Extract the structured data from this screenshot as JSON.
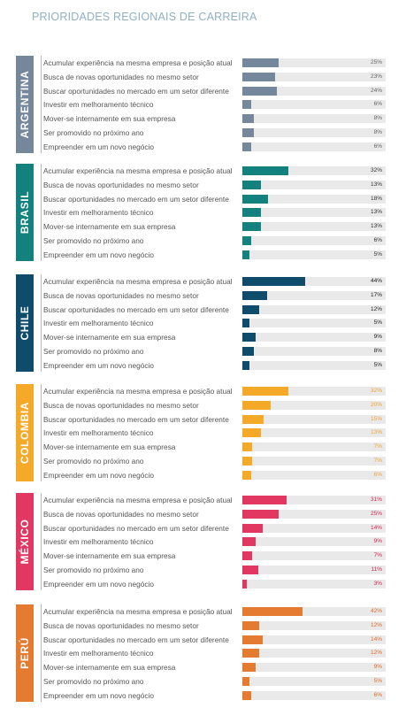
{
  "title": "PRIORIDADES REGIONAIS DE CARREIRA",
  "chart_data": [
    {
      "type": "bar",
      "title": "ARGENTINA",
      "color": "#75879b",
      "label_color": "#666666",
      "categories": [
        "Acumular experiência na mesma empresa e posição atual",
        "Busca de novas oportunidades no mesmo setor",
        "Buscar oportunidades no mercado em um setor diferente",
        "Investir em melhoramento técnico",
        "Mover-se internamente em sua empresa",
        "Ser promovido no próximo ano",
        "Empreender em um novo negócio"
      ],
      "values": [
        25,
        23,
        24,
        6,
        8,
        8,
        6
      ],
      "value_labels": [
        "25%",
        "23%",
        "24%",
        "6%",
        "8%",
        "8%",
        "6%"
      ]
    },
    {
      "type": "bar",
      "title": "BRASIL",
      "color": "#13827f",
      "label_color": "#333333",
      "categories": [
        "Acumular experiência na mesma empresa e posição atual",
        "Busca de novas oportunidades no mesmo setor",
        "Buscar oportunidades no mercado em um setor diferente",
        "Investir em melhoramento técnico",
        "Mover-se internamente em sua empresa",
        "Ser promovido no próximo ano",
        "Empreender em um novo negócio"
      ],
      "values": [
        32,
        13,
        18,
        13,
        13,
        6,
        5
      ],
      "value_labels": [
        "32%",
        "13%",
        "18%",
        "13%",
        "13%",
        "6%",
        "5%"
      ]
    },
    {
      "type": "bar",
      "title": "CHILE",
      "color": "#0f4b6b",
      "label_color": "#222222",
      "categories": [
        "Acumular experiência na mesma empresa e posição atual",
        "Busca de novas oportunidades no mesmo setor",
        "Buscar oportunidades no mercado em um setor diferente",
        "Investir em melhoramento técnico",
        "Mover-se internamente em sua empresa",
        "Ser promovido no próximo ano",
        "Empreender em um novo negócio"
      ],
      "values": [
        44,
        17,
        12,
        5,
        9,
        8,
        5
      ],
      "value_labels": [
        "44%",
        "17%",
        "12%",
        "5%",
        "9%",
        "8%",
        "5%"
      ]
    },
    {
      "type": "bar",
      "title": "COLOMBIA",
      "color": "#f5a928",
      "label_color": "#f0a234",
      "categories": [
        "Acumular experiência na mesma empresa e posição atual",
        "Busca de novas oportunidades no mesmo setor",
        "Buscar oportunidades no mercado em um setor diferente",
        "Investir em melhoramento técnico",
        "Mover-se internamente em sua empresa",
        "Ser promovido no próximo ano",
        "Empreender em um novo negócio"
      ],
      "values": [
        32,
        20,
        15,
        13,
        7,
        7,
        6
      ],
      "value_labels": [
        "32%",
        "20%",
        "15%",
        "13%",
        "7%",
        "7%",
        "6%"
      ]
    },
    {
      "type": "bar",
      "title": "MÉXICO",
      "color": "#e13761",
      "label_color": "#d8244f",
      "categories": [
        "Acumular experiência na mesma empresa e posição atual",
        "Busca de novas oportunidades no mesmo setor",
        "Buscar oportunidades no mercado em um setor diferente",
        "Investir em melhoramento técnico",
        "Mover-se internamente em sua empresa",
        "Ser promovido no próximo ano",
        "Empreender em um novo negócio"
      ],
      "values": [
        31,
        25,
        14,
        9,
        7,
        11,
        3
      ],
      "value_labels": [
        "31%",
        "25%",
        "14%",
        "9%",
        "7%",
        "11%",
        "3%"
      ]
    },
    {
      "type": "bar",
      "title": "PERÚ",
      "color": "#e57a31",
      "label_color": "#e06a22",
      "categories": [
        "Acumular experiência na mesma empresa e posição atual",
        "Busca de novas oportunidades no mesmo setor",
        "Buscar oportunidades no mercado em um setor diferente",
        "Investir em melhoramento técnico",
        "Mover-se internamente em sua empresa",
        "Ser promovido no próximo ano",
        "Empreender em um novo negócio"
      ],
      "values": [
        42,
        12,
        14,
        12,
        9,
        5,
        6
      ],
      "value_labels": [
        "42%",
        "12%",
        "14%",
        "12%",
        "9%",
        "5%",
        "6%"
      ]
    }
  ]
}
